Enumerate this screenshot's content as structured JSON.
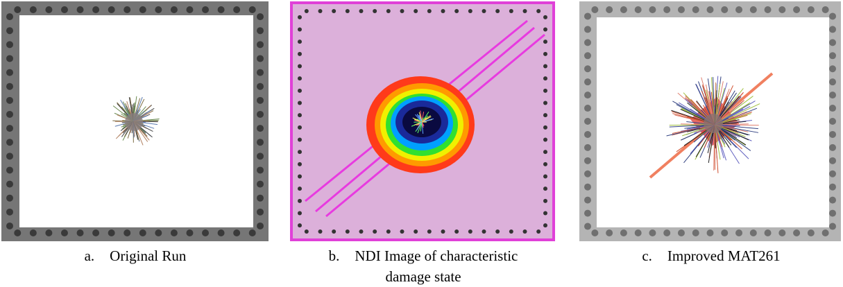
{
  "panels": [
    {
      "letter": "a.",
      "caption": "Original Run"
    },
    {
      "letter": "b.",
      "caption": "NDI Image of characteristic damage state"
    },
    {
      "letter": "c.",
      "caption": "Improved MAT261"
    }
  ]
}
